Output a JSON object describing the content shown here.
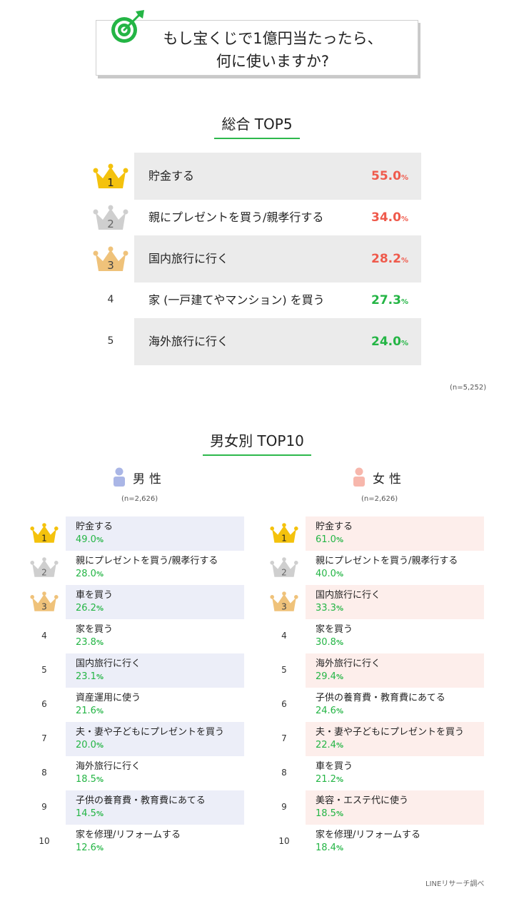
{
  "title": {
    "line1": "もし宝くじで1億円当たったら、",
    "line2": "何に使いますか?",
    "icon": "target-icon"
  },
  "colors": {
    "accent_green": "#24b545",
    "accent_red": "#ef5a4c",
    "gold": "#f4c20d",
    "silver": "#cfcfcf",
    "bronze": "#efc27a",
    "male_bg": "#eceef8",
    "female_bg": "#fdeeeb",
    "male_icon": "#aab6e6",
    "female_icon": "#f7b7ac"
  },
  "overall": {
    "heading": "総合 TOP5",
    "note": "(n=5,252)",
    "items": [
      {
        "rank": "1",
        "label": "貯金する",
        "value": "55.0",
        "unit": "%"
      },
      {
        "rank": "2",
        "label": "親にプレゼントを買う/親孝行する",
        "value": "34.0",
        "unit": "%"
      },
      {
        "rank": "3",
        "label": "国内旅行に行く",
        "value": "28.2",
        "unit": "%"
      },
      {
        "rank": "4",
        "label": "家 (一戸建てやマンション) を買う",
        "value": "27.3",
        "unit": "%"
      },
      {
        "rank": "5",
        "label": "海外旅行に行く",
        "value": "24.0",
        "unit": "%"
      }
    ]
  },
  "gender": {
    "heading": "男女別 TOP10",
    "male": {
      "name": "男性",
      "note": "(n=2,626)",
      "items": [
        {
          "rank": "1",
          "label": "貯金する",
          "value": "49.0",
          "unit": "%"
        },
        {
          "rank": "2",
          "label": "親にプレゼントを買う/親孝行する",
          "value": "28.0",
          "unit": "%"
        },
        {
          "rank": "3",
          "label": "車を買う",
          "value": "26.2",
          "unit": "%"
        },
        {
          "rank": "4",
          "label": "家を買う",
          "value": "23.8",
          "unit": "%"
        },
        {
          "rank": "5",
          "label": "国内旅行に行く",
          "value": "23.1",
          "unit": "%"
        },
        {
          "rank": "6",
          "label": "資産運用に使う",
          "value": "21.6",
          "unit": "%"
        },
        {
          "rank": "7",
          "label": "夫・妻や子どもにプレゼントを買う",
          "value": "20.0",
          "unit": "%"
        },
        {
          "rank": "8",
          "label": "海外旅行に行く",
          "value": "18.5",
          "unit": "%"
        },
        {
          "rank": "9",
          "label": "子供の養育費・教育費にあてる",
          "value": "14.5",
          "unit": "%"
        },
        {
          "rank": "10",
          "label": "家を修理/リフォームする",
          "value": "12.6",
          "unit": "%"
        }
      ]
    },
    "female": {
      "name": "女性",
      "note": "(n=2,626)",
      "items": [
        {
          "rank": "1",
          "label": "貯金する",
          "value": "61.0",
          "unit": "%"
        },
        {
          "rank": "2",
          "label": "親にプレゼントを買う/親孝行する",
          "value": "40.0",
          "unit": "%"
        },
        {
          "rank": "3",
          "label": "国内旅行に行く",
          "value": "33.3",
          "unit": "%"
        },
        {
          "rank": "4",
          "label": "家を買う",
          "value": "30.8",
          "unit": "%"
        },
        {
          "rank": "5",
          "label": "海外旅行に行く",
          "value": "29.4",
          "unit": "%"
        },
        {
          "rank": "6",
          "label": "子供の養育費・教育費にあてる",
          "value": "24.6",
          "unit": "%"
        },
        {
          "rank": "7",
          "label": "夫・妻や子どもにプレゼントを買う",
          "value": "22.4",
          "unit": "%"
        },
        {
          "rank": "8",
          "label": "車を買う",
          "value": "21.2",
          "unit": "%"
        },
        {
          "rank": "9",
          "label": "美容・エステ代に使う",
          "value": "18.5",
          "unit": "%"
        },
        {
          "rank": "10",
          "label": "家を修理/リフォームする",
          "value": "18.4",
          "unit": "%"
        }
      ]
    }
  },
  "source": "LINEリサーチ調べ",
  "chart_data": [
    {
      "type": "table",
      "title": "総合 TOP5",
      "categories": [
        "貯金する",
        "親にプレゼントを買う/親孝行する",
        "国内旅行に行く",
        "家 (一戸建てやマンション) を買う",
        "海外旅行に行く"
      ],
      "values": [
        55.0,
        34.0,
        28.2,
        27.3,
        24.0
      ]
    },
    {
      "type": "table",
      "title": "男女別 TOP10",
      "series": [
        {
          "name": "男性",
          "categories": [
            "貯金する",
            "親にプレゼントを買う/親孝行する",
            "車を買う",
            "家を買う",
            "国内旅行に行く",
            "資産運用に使う",
            "夫・妻や子どもにプレゼントを買う",
            "海外旅行に行く",
            "子供の養育費・教育費にあてる",
            "家を修理/リフォームする"
          ],
          "values": [
            49.0,
            28.0,
            26.2,
            23.8,
            23.1,
            21.6,
            20.0,
            18.5,
            14.5,
            12.6
          ]
        },
        {
          "name": "女性",
          "categories": [
            "貯金する",
            "親にプレゼントを買う/親孝行する",
            "国内旅行に行く",
            "家を買う",
            "海外旅行に行く",
            "子供の養育費・教育費にあてる",
            "夫・妻や子どもにプレゼントを買う",
            "車を買う",
            "美容・エステ代に使う",
            "家を修理/リフォームする"
          ],
          "values": [
            61.0,
            40.0,
            33.3,
            30.8,
            29.4,
            24.6,
            22.4,
            21.2,
            18.5,
            18.4
          ]
        }
      ]
    }
  ]
}
